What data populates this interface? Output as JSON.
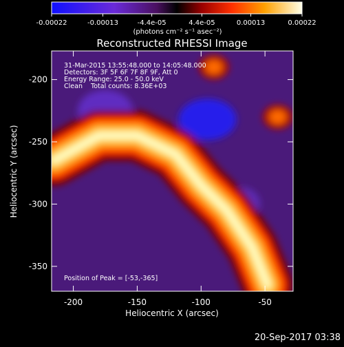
{
  "footer": {
    "timestamp": "20-Sep-2017 03:38"
  },
  "colorbar": {
    "ticks": [
      "-0.00022",
      "-0.00013",
      "-4.4e-05",
      "4.4e-05",
      "0.00013",
      "0.00022"
    ],
    "unit_label": "(photons cm⁻² s⁻¹ asec⁻²)",
    "range": [
      -0.00022,
      0.00022
    ]
  },
  "info": {
    "line1": "31-Mar-2015 13:55:48.000 to 14:05:48.000",
    "line2": "Detectors: 3F 5F 6F 7F 8F 9F, Att 0",
    "line3": "Energy Range: 25.0 - 50.0 keV",
    "line4": "Clean    Total counts: 8.36E+03",
    "peak": "Position of Peak = [-53,-365]"
  },
  "colors": {
    "background": "#000000",
    "text": "#ffffff",
    "colormap": [
      "#1a1aff",
      "#5a30e0",
      "#8a2be2",
      "#5a1a7a",
      "#000000",
      "#8b0000",
      "#ff2a00",
      "#ff8c00",
      "#ffd700",
      "#ffffe0"
    ]
  },
  "chart_data": {
    "type": "heatmap",
    "title": "Reconstructed RHESSI Image",
    "xlabel": "Heliocentric X (arcsec)",
    "ylabel": "Heliocentric Y (arcsec)",
    "xlim": [
      -217,
      -28
    ],
    "ylim": [
      -370,
      -177
    ],
    "xticks": [
      -200,
      -150,
      -100,
      -50
    ],
    "yticks": [
      -200,
      -250,
      -300,
      -350
    ],
    "xtick_labels": [
      "-200",
      "-150",
      "-100",
      "-50"
    ],
    "ytick_labels": [
      "-200",
      "-250",
      "-300",
      "-350"
    ],
    "peak_position": [
      -53,
      -365
    ],
    "features": [
      {
        "kind": "bright-arc",
        "points": [
          [
            -215,
            -265
          ],
          [
            -180,
            -245
          ],
          [
            -150,
            -245
          ],
          [
            -120,
            -260
          ],
          [
            -100,
            -285
          ],
          [
            -80,
            -305
          ],
          [
            -60,
            -335
          ],
          [
            -48,
            -365
          ]
        ],
        "value": 0.00018
      },
      {
        "kind": "bright-patch",
        "x": -90,
        "y": -190,
        "value": 0.00012
      },
      {
        "kind": "bright-patch",
        "x": -40,
        "y": -230,
        "value": 0.0001
      },
      {
        "kind": "dark-patch",
        "x": -95,
        "y": -232,
        "value": -0.00016
      }
    ]
  }
}
